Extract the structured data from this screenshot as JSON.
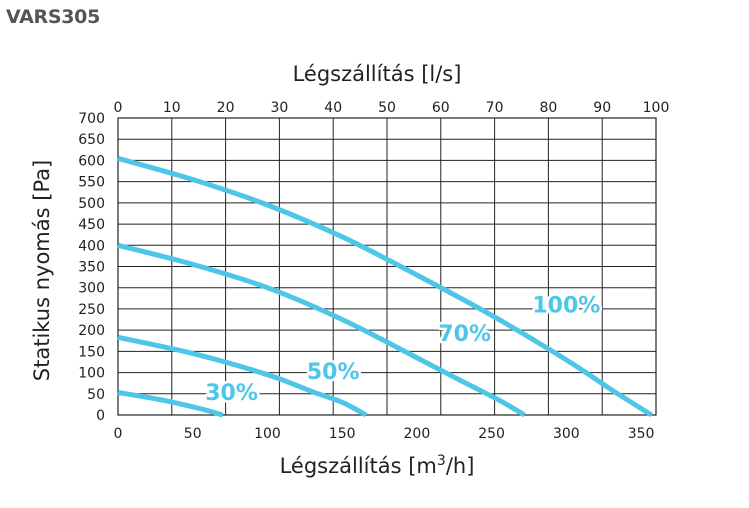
{
  "page": {
    "title": "VARS305"
  },
  "colors": {
    "curve": "#4DC6E8",
    "grid": "#222222",
    "label_halo": "#ffffff"
  },
  "chart_data": {
    "type": "line",
    "title": "",
    "xlabel": "Légszállítás [m³/h]",
    "x2label": "Légszállítás [l/s]",
    "ylabel": "Statikus nyomás   [Pa]",
    "xlim": [
      0,
      360
    ],
    "x2lim": [
      0,
      100
    ],
    "ylim": [
      0,
      700
    ],
    "x_ticks": [
      0,
      50,
      100,
      150,
      200,
      250,
      300,
      350
    ],
    "x2_ticks": [
      0,
      10,
      20,
      30,
      40,
      50,
      60,
      70,
      80,
      90,
      100
    ],
    "y_ticks": [
      0,
      50,
      100,
      150,
      200,
      250,
      300,
      350,
      400,
      450,
      500,
      550,
      600,
      650,
      700
    ],
    "grid": true,
    "series": [
      {
        "name": "100%",
        "x": [
          0,
          50,
          100,
          150,
          200,
          250,
          300,
          330,
          357
        ],
        "y": [
          605,
          555,
          495,
          420,
          330,
          235,
          130,
          60,
          0
        ]
      },
      {
        "name": "70%",
        "x": [
          0,
          50,
          100,
          150,
          200,
          230,
          255,
          272
        ],
        "y": [
          400,
          355,
          300,
          225,
          135,
          80,
          35,
          0
        ]
      },
      {
        "name": "50%",
        "x": [
          0,
          50,
          100,
          130,
          150,
          166
        ],
        "y": [
          183,
          145,
          95,
          55,
          30,
          0
        ]
      },
      {
        "name": "30%",
        "x": [
          0,
          30,
          55,
          70
        ],
        "y": [
          53,
          35,
          15,
          0
        ]
      }
    ],
    "labels": [
      {
        "text": "100%",
        "x": 300,
        "y": 242
      },
      {
        "text": "70%",
        "x": 232,
        "y": 175
      },
      {
        "text": "50%",
        "x": 144,
        "y": 85
      },
      {
        "text": "30%",
        "x": 76,
        "y": 35
      }
    ]
  }
}
